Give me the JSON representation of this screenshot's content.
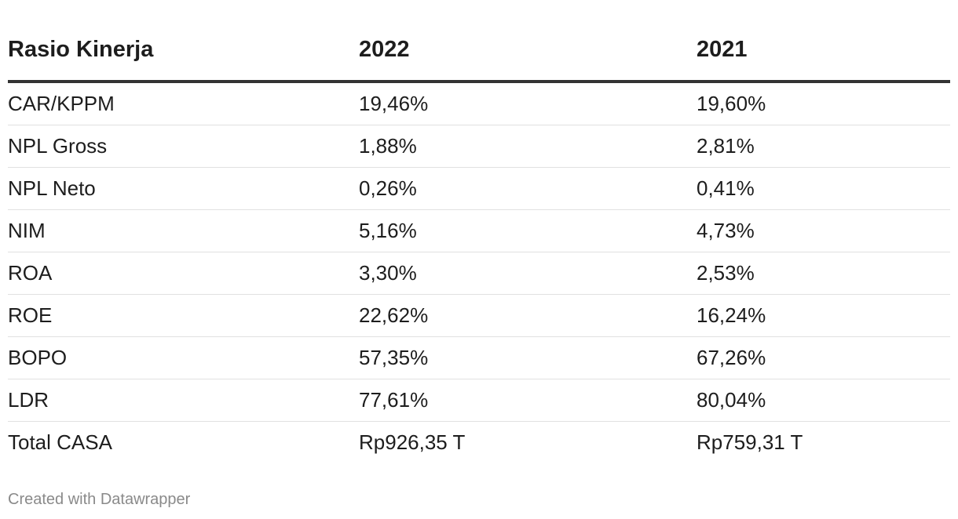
{
  "chart_data": {
    "type": "table",
    "columns": [
      "Rasio Kinerja",
      "2022",
      "2021"
    ],
    "rows": [
      [
        "CAR/KPPM",
        "19,46%",
        "19,60%"
      ],
      [
        "NPL Gross",
        "1,88%",
        "2,81%"
      ],
      [
        "NPL Neto",
        "0,26%",
        "0,41%"
      ],
      [
        "NIM",
        "5,16%",
        "4,73%"
      ],
      [
        "ROA",
        "3,30%",
        "2,53%"
      ],
      [
        "ROE",
        "22,62%",
        "16,24%"
      ],
      [
        "BOPO",
        "57,35%",
        "67,26%"
      ],
      [
        "LDR",
        "77,61%",
        "80,04%"
      ],
      [
        "Total CASA",
        "Rp926,35 T",
        "Rp759,31 T"
      ]
    ]
  },
  "footer": {
    "credit": "Created with Datawrapper"
  },
  "colors": {
    "text": "#1d1d1d",
    "header_rule": "#333333",
    "row_rule": "#e1e1e1",
    "footer_text": "#8a8a8a"
  }
}
